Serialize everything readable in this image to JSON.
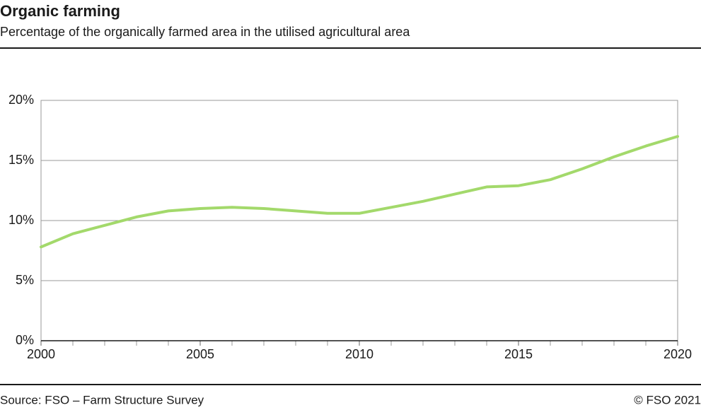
{
  "chart_data": {
    "type": "line",
    "title": "Organic farming",
    "subtitle": "Percentage of the organically farmed area in the utilised agricultural area",
    "source": "Source: FSO – Farm Structure Survey",
    "copyright": "© FSO 2021",
    "x": [
      2000,
      2001,
      2002,
      2003,
      2004,
      2005,
      2006,
      2007,
      2008,
      2009,
      2010,
      2011,
      2012,
      2013,
      2014,
      2015,
      2016,
      2017,
      2018,
      2019,
      2020
    ],
    "values": [
      7.8,
      8.9,
      9.6,
      10.3,
      10.8,
      11.0,
      11.1,
      11.0,
      10.8,
      10.6,
      10.6,
      11.1,
      11.6,
      12.2,
      12.8,
      12.9,
      13.4,
      14.3,
      15.3,
      16.2,
      17.0
    ],
    "color": "#a3d96b",
    "xlim": [
      2000,
      2020
    ],
    "xticks": [
      2000,
      2005,
      2010,
      2015,
      2020
    ],
    "ylim": [
      0,
      20
    ],
    "yticks": [
      {
        "value": 0,
        "label": "0%"
      },
      {
        "value": 5,
        "label": "5%"
      },
      {
        "value": 10,
        "label": "10%"
      },
      {
        "value": 15,
        "label": "15%"
      },
      {
        "value": 20,
        "label": "20%"
      }
    ],
    "grid": true
  }
}
